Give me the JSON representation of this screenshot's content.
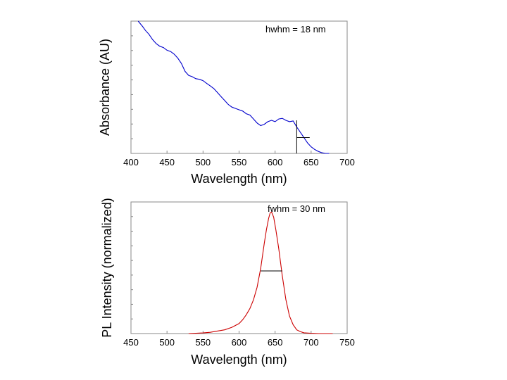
{
  "chart_data": [
    {
      "type": "line",
      "title": "",
      "xlabel": "Wavelength (nm)",
      "ylabel": "Absorbance (AU)",
      "xlim": [
        400,
        700
      ],
      "ylim": [
        0,
        1
      ],
      "xticks": [
        400,
        450,
        500,
        550,
        600,
        650,
        700
      ],
      "y_tick_labels_shown": false,
      "grid": false,
      "annotation": "hwhm = 18 nm",
      "line_color": "#0000cc",
      "series": [
        {
          "x": [
            410,
            416,
            420,
            425,
            430,
            435,
            440,
            445,
            450,
            455,
            460,
            465,
            470,
            475,
            480,
            485,
            490,
            495,
            500,
            505,
            510,
            515,
            520,
            525,
            530,
            535,
            540,
            545,
            550,
            555,
            560,
            565,
            570,
            575,
            580,
            585,
            590,
            595,
            600,
            605,
            610,
            615,
            620,
            625,
            630,
            635,
            640,
            645,
            650,
            655,
            660,
            665,
            670,
            675
          ],
          "values": [
            1.0,
            0.96,
            0.93,
            0.9,
            0.86,
            0.83,
            0.81,
            0.8,
            0.78,
            0.77,
            0.75,
            0.72,
            0.68,
            0.62,
            0.59,
            0.58,
            0.565,
            0.56,
            0.55,
            0.53,
            0.51,
            0.49,
            0.46,
            0.43,
            0.4,
            0.37,
            0.35,
            0.34,
            0.33,
            0.32,
            0.3,
            0.29,
            0.26,
            0.23,
            0.21,
            0.22,
            0.24,
            0.25,
            0.24,
            0.26,
            0.265,
            0.25,
            0.24,
            0.245,
            0.2,
            0.16,
            0.12,
            0.08,
            0.05,
            0.03,
            0.015,
            0.005,
            0.0,
            0.0
          ]
        }
      ],
      "width_marker": {
        "x_left": 630,
        "x_right": 648,
        "y": 0.12,
        "vline_x": 630,
        "vline_y": 0.25
      }
    },
    {
      "type": "line",
      "title": "",
      "xlabel": "Wavelength (nm)",
      "ylabel": "PL Intensity (normalized)",
      "xlim": [
        450,
        750
      ],
      "ylim": [
        0,
        1.05
      ],
      "xticks": [
        450,
        500,
        550,
        600,
        650,
        700,
        750
      ],
      "y_tick_labels_shown": false,
      "grid": false,
      "annotation": "fwhm = 30 nm",
      "line_color": "#cc0000",
      "series": [
        {
          "x": [
            530,
            540,
            550,
            560,
            570,
            580,
            590,
            600,
            605,
            610,
            615,
            620,
            625,
            630,
            635,
            638,
            641,
            643,
            645,
            648,
            651,
            655,
            660,
            665,
            670,
            675,
            680,
            685,
            690,
            700,
            710,
            720,
            730
          ],
          "values": [
            0.0,
            0.002,
            0.005,
            0.01,
            0.02,
            0.03,
            0.05,
            0.08,
            0.11,
            0.15,
            0.2,
            0.27,
            0.37,
            0.52,
            0.72,
            0.83,
            0.92,
            0.96,
            0.97,
            0.93,
            0.83,
            0.68,
            0.46,
            0.27,
            0.14,
            0.07,
            0.03,
            0.015,
            0.006,
            0.002,
            0.0,
            0.0,
            0.0
          ]
        }
      ],
      "width_marker": {
        "x_left": 630,
        "x_right": 660,
        "y": 0.5
      }
    }
  ]
}
